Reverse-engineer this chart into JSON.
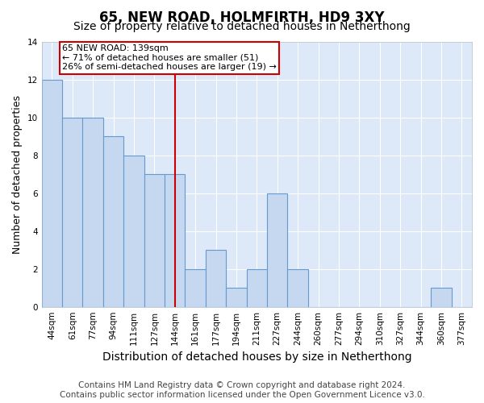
{
  "title": "65, NEW ROAD, HOLMFIRTH, HD9 3XY",
  "subtitle": "Size of property relative to detached houses in Netherthong",
  "xlabel": "Distribution of detached houses by size in Netherthong",
  "ylabel": "Number of detached properties",
  "categories": [
    "44sqm",
    "61sqm",
    "77sqm",
    "94sqm",
    "111sqm",
    "127sqm",
    "144sqm",
    "161sqm",
    "177sqm",
    "194sqm",
    "211sqm",
    "227sqm",
    "244sqm",
    "260sqm",
    "277sqm",
    "294sqm",
    "310sqm",
    "327sqm",
    "344sqm",
    "360sqm",
    "377sqm"
  ],
  "values": [
    12,
    10,
    10,
    9,
    8,
    7,
    7,
    2,
    3,
    1,
    2,
    6,
    2,
    0,
    0,
    0,
    0,
    0,
    0,
    1,
    0
  ],
  "bar_color": "#c5d8f0",
  "bar_edge_color": "#6699cc",
  "vline_x_index": 6,
  "vline_color": "#cc0000",
  "annotation_text": "65 NEW ROAD: 139sqm\n← 71% of detached houses are smaller (51)\n26% of semi-detached houses are larger (19) →",
  "annotation_box_edge_color": "#cc0000",
  "ylim": [
    0,
    14
  ],
  "yticks": [
    0,
    2,
    4,
    6,
    8,
    10,
    12,
    14
  ],
  "background_color": "#dde8f8",
  "footer_text": "Contains HM Land Registry data © Crown copyright and database right 2024.\nContains public sector information licensed under the Open Government Licence v3.0.",
  "title_fontsize": 12,
  "subtitle_fontsize": 10,
  "xlabel_fontsize": 10,
  "ylabel_fontsize": 9,
  "tick_fontsize": 7.5,
  "footer_fontsize": 7.5
}
